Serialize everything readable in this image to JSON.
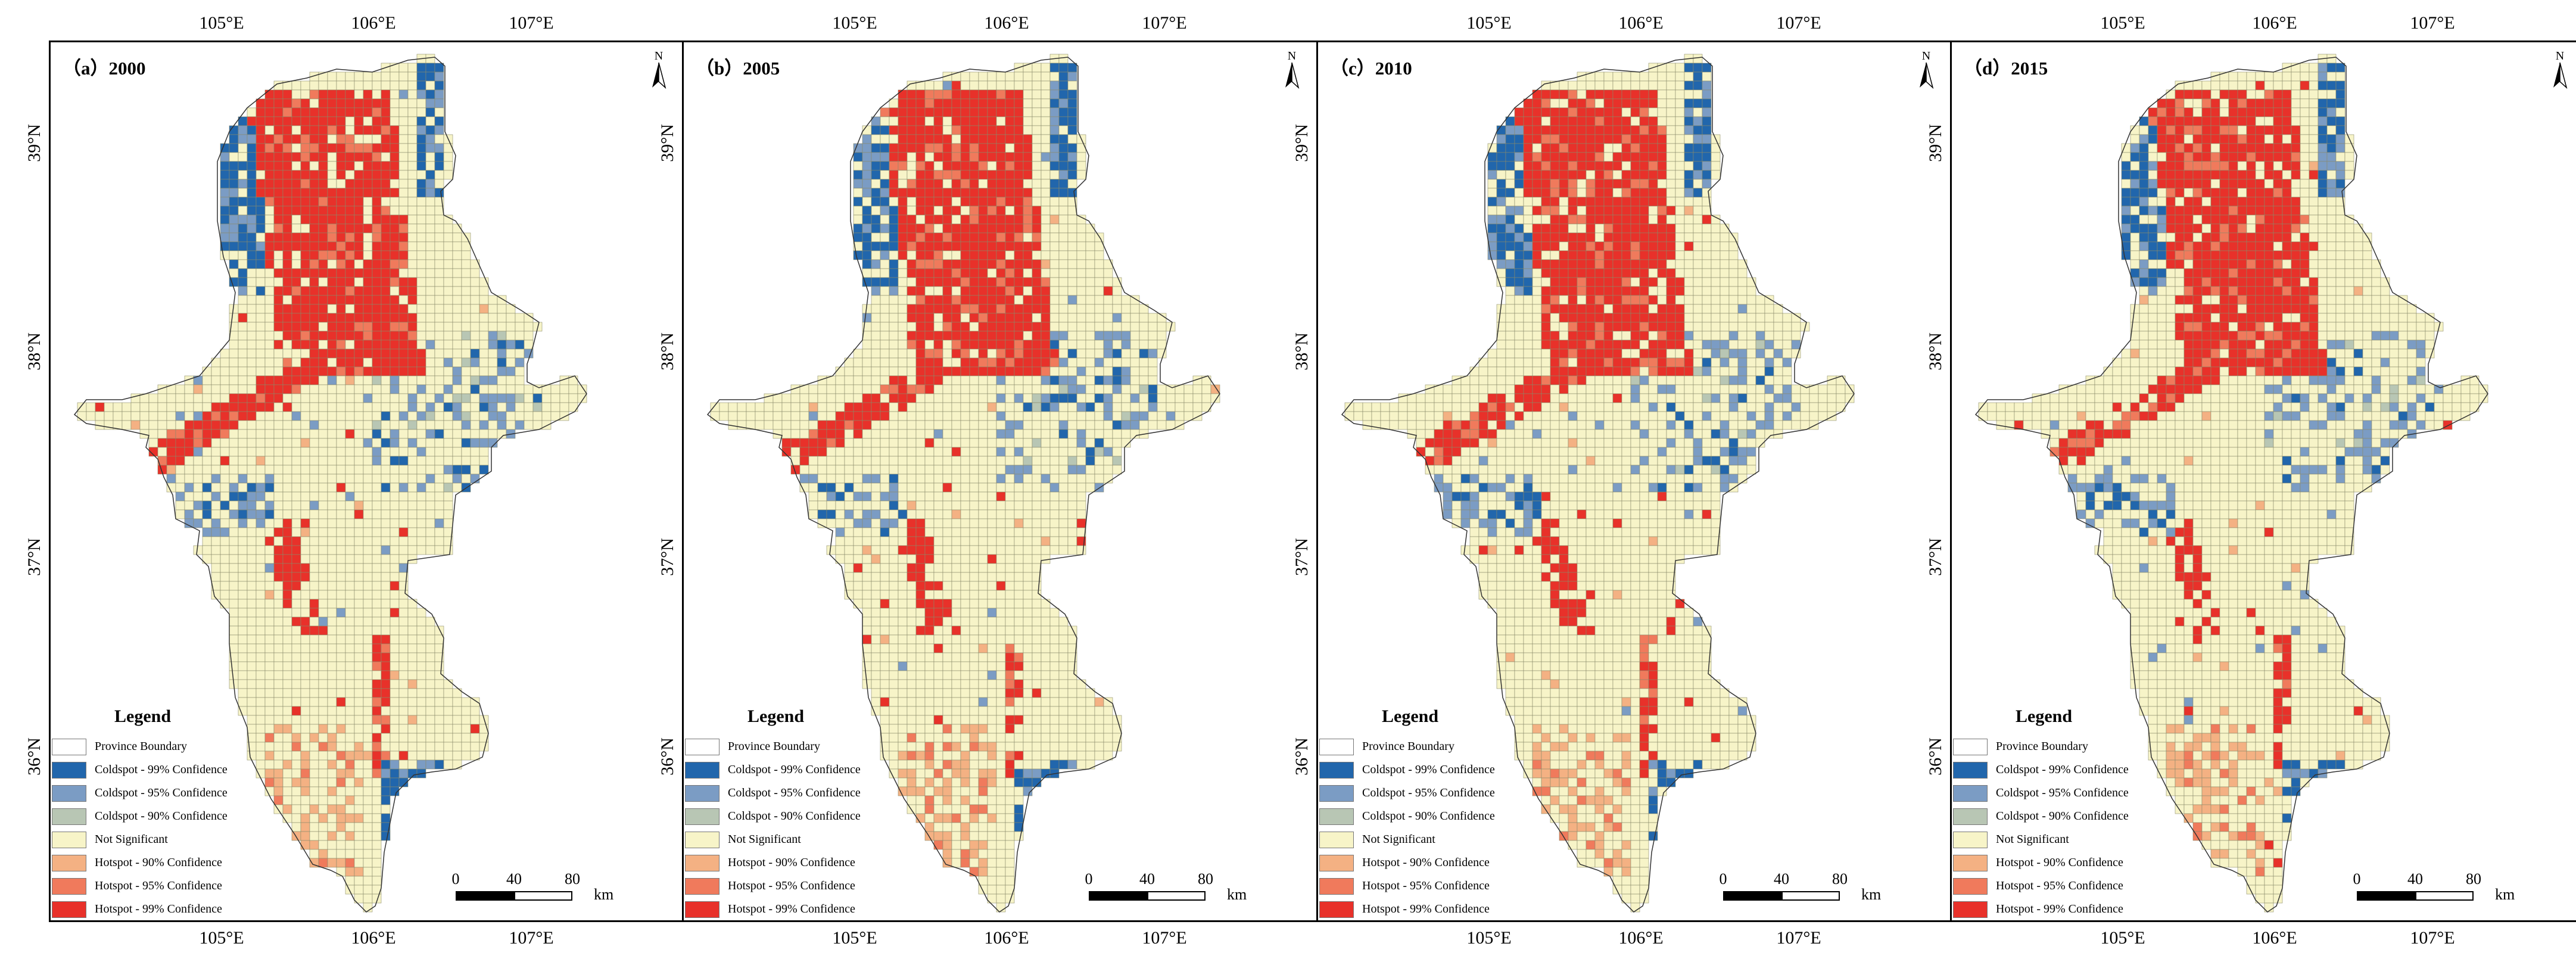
{
  "panels": [
    {
      "label": "（a）2000"
    },
    {
      "label": "（b）2005"
    },
    {
      "label": "（c）2010"
    },
    {
      "label": "（d）2015"
    }
  ],
  "axis": {
    "top_ticks": [
      "105°E",
      "106°E",
      "107°E"
    ],
    "bottom_ticks": [
      "105°E",
      "106°E",
      "107°E"
    ],
    "left_ticks": [
      "39°N",
      "38°N",
      "37°N",
      "36°N"
    ],
    "right_ticks": [
      "39°N",
      "38°N",
      "37°N",
      "36°N"
    ]
  },
  "north_arrow": {
    "letter": "N"
  },
  "legend": {
    "title": "Legend",
    "items": [
      {
        "label": "Province Boundary",
        "color": "#ffffff"
      },
      {
        "label": "Coldspot - 99% Confidence",
        "color": "#2166ac"
      },
      {
        "label": "Coldspot - 95% Confidence",
        "color": "#7b9cc4"
      },
      {
        "label": "Coldspot - 90% Confidence",
        "color": "#b8c6b4"
      },
      {
        "label": "Not Significant",
        "color": "#f7f4c8"
      },
      {
        "label": "Hotspot - 90% Confidence",
        "color": "#f4b183"
      },
      {
        "label": "Hotspot - 95% Confidence",
        "color": "#f07a5c"
      },
      {
        "label": "Hotspot - 99% Confidence",
        "color": "#e8312a"
      }
    ]
  },
  "scale_bar": {
    "ticks": [
      "0",
      "40",
      "80"
    ],
    "unit": "km"
  }
}
